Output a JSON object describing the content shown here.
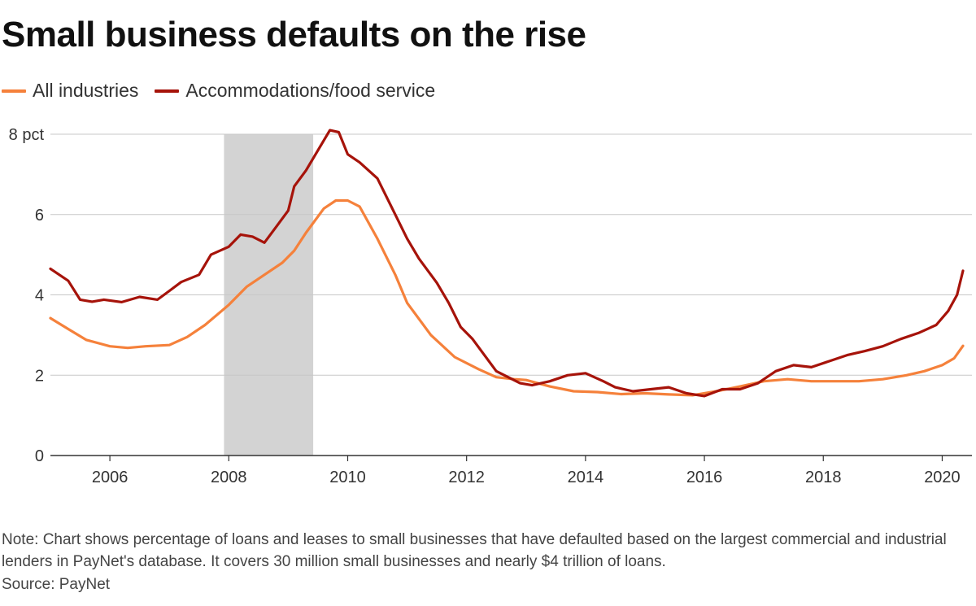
{
  "title": "Small business defaults on the rise",
  "note": "Note: Chart shows percentage of loans and leases to small businesses that have defaulted based on the largest commercial and industrial lenders in PayNet's database. It covers 30 million small businesses and nearly $4 trillion of loans.",
  "source": "Source: PayNet",
  "chart_data": {
    "type": "line",
    "title": "Small business defaults on the rise",
    "xlabel": "",
    "ylabel": "",
    "y_unit_label": "pct",
    "xlim": [
      2005.0,
      2020.5
    ],
    "ylim": [
      0,
      8
    ],
    "x_ticks": [
      2006,
      2008,
      2010,
      2012,
      2014,
      2016,
      2018,
      2020
    ],
    "y_ticks": [
      0,
      2,
      4,
      6,
      8
    ],
    "y_tick_labels": [
      "0",
      "2",
      "4",
      "6",
      "8 pct"
    ],
    "grid": "horizontal",
    "legend_position": "top-left",
    "shaded_region": {
      "x_start": 2007.92,
      "x_end": 2009.42,
      "color": "#d3d3d3"
    },
    "series": [
      {
        "name": "All industries",
        "color": "#f5813b",
        "points": [
          [
            2005.0,
            3.42
          ],
          [
            2005.3,
            3.15
          ],
          [
            2005.6,
            2.88
          ],
          [
            2006.0,
            2.72
          ],
          [
            2006.3,
            2.68
          ],
          [
            2006.6,
            2.72
          ],
          [
            2007.0,
            2.75
          ],
          [
            2007.3,
            2.95
          ],
          [
            2007.6,
            3.25
          ],
          [
            2008.0,
            3.75
          ],
          [
            2008.3,
            4.2
          ],
          [
            2008.6,
            4.5
          ],
          [
            2008.9,
            4.8
          ],
          [
            2009.1,
            5.1
          ],
          [
            2009.3,
            5.55
          ],
          [
            2009.6,
            6.15
          ],
          [
            2009.8,
            6.35
          ],
          [
            2010.0,
            6.35
          ],
          [
            2010.2,
            6.2
          ],
          [
            2010.5,
            5.4
          ],
          [
            2010.8,
            4.5
          ],
          [
            2011.0,
            3.8
          ],
          [
            2011.4,
            3.0
          ],
          [
            2011.8,
            2.45
          ],
          [
            2012.2,
            2.15
          ],
          [
            2012.5,
            1.95
          ],
          [
            2012.8,
            1.9
          ],
          [
            2013.0,
            1.88
          ],
          [
            2013.4,
            1.72
          ],
          [
            2013.8,
            1.6
          ],
          [
            2014.2,
            1.58
          ],
          [
            2014.6,
            1.53
          ],
          [
            2015.0,
            1.55
          ],
          [
            2015.4,
            1.52
          ],
          [
            2015.8,
            1.5
          ],
          [
            2016.2,
            1.6
          ],
          [
            2016.6,
            1.72
          ],
          [
            2017.0,
            1.85
          ],
          [
            2017.4,
            1.9
          ],
          [
            2017.8,
            1.85
          ],
          [
            2018.2,
            1.85
          ],
          [
            2018.6,
            1.85
          ],
          [
            2019.0,
            1.9
          ],
          [
            2019.4,
            2.0
          ],
          [
            2019.7,
            2.1
          ],
          [
            2020.0,
            2.25
          ],
          [
            2020.2,
            2.42
          ],
          [
            2020.35,
            2.73
          ]
        ]
      },
      {
        "name": "Accommodations/food service",
        "color": "#a6130a",
        "points": [
          [
            2005.0,
            4.65
          ],
          [
            2005.3,
            4.35
          ],
          [
            2005.5,
            3.88
          ],
          [
            2005.7,
            3.83
          ],
          [
            2005.9,
            3.88
          ],
          [
            2006.2,
            3.82
          ],
          [
            2006.5,
            3.95
          ],
          [
            2006.8,
            3.88
          ],
          [
            2007.0,
            4.1
          ],
          [
            2007.2,
            4.32
          ],
          [
            2007.5,
            4.5
          ],
          [
            2007.7,
            5.0
          ],
          [
            2008.0,
            5.2
          ],
          [
            2008.2,
            5.5
          ],
          [
            2008.4,
            5.45
          ],
          [
            2008.6,
            5.3
          ],
          [
            2008.8,
            5.7
          ],
          [
            2009.0,
            6.1
          ],
          [
            2009.1,
            6.7
          ],
          [
            2009.3,
            7.1
          ],
          [
            2009.5,
            7.6
          ],
          [
            2009.7,
            8.1
          ],
          [
            2009.85,
            8.05
          ],
          [
            2010.0,
            7.5
          ],
          [
            2010.2,
            7.3
          ],
          [
            2010.5,
            6.9
          ],
          [
            2010.8,
            6.0
          ],
          [
            2011.0,
            5.4
          ],
          [
            2011.2,
            4.9
          ],
          [
            2011.5,
            4.3
          ],
          [
            2011.7,
            3.8
          ],
          [
            2011.9,
            3.2
          ],
          [
            2012.1,
            2.9
          ],
          [
            2012.3,
            2.5
          ],
          [
            2012.5,
            2.1
          ],
          [
            2012.7,
            1.95
          ],
          [
            2012.9,
            1.8
          ],
          [
            2013.1,
            1.75
          ],
          [
            2013.4,
            1.85
          ],
          [
            2013.7,
            2.0
          ],
          [
            2014.0,
            2.05
          ],
          [
            2014.3,
            1.85
          ],
          [
            2014.5,
            1.7
          ],
          [
            2014.8,
            1.6
          ],
          [
            2015.1,
            1.65
          ],
          [
            2015.4,
            1.7
          ],
          [
            2015.7,
            1.55
          ],
          [
            2016.0,
            1.48
          ],
          [
            2016.3,
            1.65
          ],
          [
            2016.6,
            1.65
          ],
          [
            2016.9,
            1.8
          ],
          [
            2017.2,
            2.1
          ],
          [
            2017.5,
            2.25
          ],
          [
            2017.8,
            2.2
          ],
          [
            2018.1,
            2.35
          ],
          [
            2018.4,
            2.5
          ],
          [
            2018.7,
            2.6
          ],
          [
            2019.0,
            2.72
          ],
          [
            2019.3,
            2.9
          ],
          [
            2019.6,
            3.05
          ],
          [
            2019.9,
            3.25
          ],
          [
            2020.1,
            3.6
          ],
          [
            2020.25,
            4.0
          ],
          [
            2020.35,
            4.6
          ]
        ]
      }
    ]
  }
}
